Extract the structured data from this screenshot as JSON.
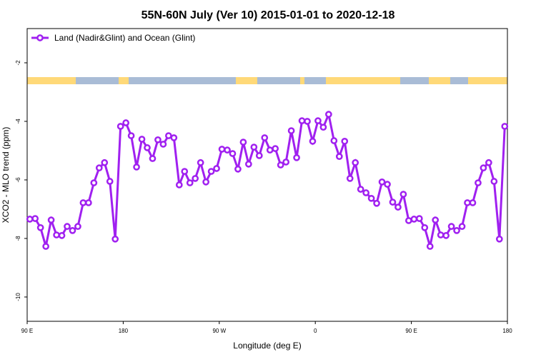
{
  "chart_data": {
    "type": "line",
    "title": "55N-60N July (Ver 10)   2015-01-01 to 2020-12-18",
    "xlabel": "Longitude (deg E)",
    "ylabel": "XCO2 - MLO trend (ppm)",
    "xlim": [
      90,
      540
    ],
    "ylim": [
      -10.83,
      -0.83
    ],
    "xticks": [
      {
        "value": 90,
        "label": "90 E"
      },
      {
        "value": 180,
        "label": "180"
      },
      {
        "value": 270,
        "label": "90 W"
      },
      {
        "value": 360,
        "label": "0"
      },
      {
        "value": 450,
        "label": "90 E"
      },
      {
        "value": 540,
        "label": "180"
      }
    ],
    "yticks": [
      -2,
      -4,
      -6,
      -8,
      -10
    ],
    "legend": "upper left",
    "x": [
      92.5,
      97.5,
      102.5,
      107.5,
      112.5,
      117.5,
      122.5,
      127.5,
      132.5,
      137.5,
      142.5,
      147.5,
      152.5,
      157.5,
      162.5,
      167.5,
      172.5,
      177.5,
      182.5,
      187.5,
      192.5,
      197.5,
      202.5,
      207.5,
      212.5,
      217.5,
      222.5,
      227.5,
      232.5,
      237.5,
      242.5,
      247.5,
      252.5,
      257.5,
      262.5,
      267.5,
      272.5,
      277.5,
      282.5,
      287.5,
      292.5,
      297.5,
      302.5,
      307.5,
      312.5,
      317.5,
      322.5,
      327.5,
      332.5,
      337.5,
      342.5,
      347.5,
      352.5,
      357.5,
      362.5,
      367.5,
      372.5,
      377.5,
      382.5,
      387.5,
      392.5,
      397.5,
      402.5,
      407.5,
      412.5,
      417.5,
      422.5,
      427.5,
      432.5,
      437.5,
      442.5,
      447.5,
      452.5,
      457.5,
      462.5,
      467.5,
      472.5,
      477.5,
      482.5,
      487.5,
      492.5,
      497.5,
      502.5,
      507.5,
      512.5,
      517.5,
      522.5,
      527.5,
      532.5,
      537.5
    ],
    "series": [
      {
        "name": "Land (Nadir&Glint) and Ocean (Glint)",
        "color": "#a020f0",
        "values": [
          -7.34,
          -7.32,
          -7.63,
          -8.27,
          -7.37,
          -7.88,
          -7.9,
          -7.59,
          -7.73,
          -7.59,
          -6.78,
          -6.78,
          -6.1,
          -5.59,
          -5.41,
          -6.05,
          -8.02,
          -4.17,
          -4.05,
          -4.49,
          -5.56,
          -4.61,
          -4.9,
          -5.27,
          -4.63,
          -4.78,
          -4.49,
          -4.56,
          -6.17,
          -5.71,
          -6.1,
          -5.95,
          -5.41,
          -6.07,
          -5.71,
          -5.61,
          -4.95,
          -4.98,
          -5.1,
          -5.63,
          -4.71,
          -5.46,
          -4.88,
          -5.17,
          -4.56,
          -4.98,
          -4.93,
          -5.49,
          -5.39,
          -4.32,
          -5.24,
          -3.98,
          -4.0,
          -4.68,
          -3.98,
          -4.2,
          -3.76,
          -4.66,
          -5.2,
          -4.68,
          -5.95,
          -5.41,
          -6.32,
          -6.44,
          -6.63,
          -6.8,
          -6.07,
          -6.15,
          -6.76,
          -6.93,
          -6.49,
          -7.39,
          -7.34,
          -7.32,
          -7.63,
          -8.27,
          -7.37,
          -7.88,
          -7.9,
          -7.59,
          -7.73,
          -7.59,
          -6.78,
          -6.78,
          -6.1,
          -5.59,
          -5.41,
          -6.05,
          -8.02,
          -4.17
        ]
      }
    ]
  }
}
